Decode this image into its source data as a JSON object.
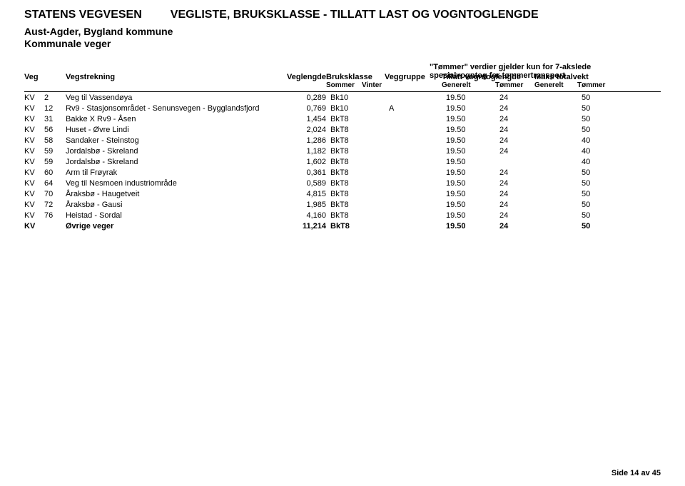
{
  "titles": {
    "org": "STATENS VEGVESEN",
    "main": "VEGLISTE, BRUKSKLASSE - TILLATT LAST OG VOGNTOGLENGDE",
    "region": "Aust-Agder, Bygland kommune",
    "roads_type": "Kommunale veger",
    "note_line1": "\"Tømmer\" verdier gjelder kun for 7-akslede",
    "note_line2": "spesialvogntog for tømmertransport"
  },
  "headers": {
    "veg": "Veg",
    "vegstrekning": "Vegstrekning",
    "veglengde": "Veglengde",
    "bruksklasse": "Bruksklasse",
    "sommer": "Sommer",
    "vinter": "Vinter",
    "veggruppe": "Veggruppe",
    "tillatt": "Tillatt vogntoglengde",
    "maks": "Maks totalvekt",
    "generelt": "Generelt",
    "tommer": "Tømmer"
  },
  "rows": [
    {
      "veg": "KV",
      "num": "2",
      "strek": "Veg til Vassendøya",
      "vegl": "0,289",
      "bk": "Bk10",
      "vgr": "",
      "tvlg": "19.50",
      "tvlt": "24",
      "mtvg": "",
      "mtvt": "50",
      "bold": false
    },
    {
      "veg": "KV",
      "num": "12",
      "strek": "Rv9 - Stasjonsområdet - Senunsvegen - Bygglandsfjord",
      "vegl": "0,769",
      "bk": "Bk10",
      "vgr": "A",
      "tvlg": "19.50",
      "tvlt": "24",
      "mtvg": "",
      "mtvt": "50",
      "bold": false
    },
    {
      "veg": "KV",
      "num": "31",
      "strek": "Bakke X Rv9 - Åsen",
      "vegl": "1,454",
      "bk": "BkT8",
      "vgr": "",
      "tvlg": "19.50",
      "tvlt": "24",
      "mtvg": "",
      "mtvt": "50",
      "bold": false
    },
    {
      "veg": "KV",
      "num": "56",
      "strek": "Huset - Øvre Lindi",
      "vegl": "2,024",
      "bk": "BkT8",
      "vgr": "",
      "tvlg": "19.50",
      "tvlt": "24",
      "mtvg": "",
      "mtvt": "50",
      "bold": false
    },
    {
      "veg": "KV",
      "num": "58",
      "strek": "Sandaker - Steinstog",
      "vegl": "1,286",
      "bk": "BkT8",
      "vgr": "",
      "tvlg": "19.50",
      "tvlt": "24",
      "mtvg": "",
      "mtvt": "40",
      "bold": false
    },
    {
      "veg": "KV",
      "num": "59",
      "strek": "Jordalsbø - Skreland",
      "vegl": "1,182",
      "bk": "BkT8",
      "vgr": "",
      "tvlg": "19.50",
      "tvlt": "24",
      "mtvg": "",
      "mtvt": "40",
      "bold": false
    },
    {
      "veg": "KV",
      "num": "59",
      "strek": "Jordalsbø - Skreland",
      "vegl": "1,602",
      "bk": "BkT8",
      "vgr": "",
      "tvlg": "19.50",
      "tvlt": "",
      "mtvg": "",
      "mtvt": "40",
      "bold": false
    },
    {
      "veg": "KV",
      "num": "60",
      "strek": "Arm til Frøyrak",
      "vegl": "0,361",
      "bk": "BkT8",
      "vgr": "",
      "tvlg": "19.50",
      "tvlt": "24",
      "mtvg": "",
      "mtvt": "50",
      "bold": false
    },
    {
      "veg": "KV",
      "num": "64",
      "strek": "Veg til Nesmoen industriområde",
      "vegl": "0,589",
      "bk": "BkT8",
      "vgr": "",
      "tvlg": "19.50",
      "tvlt": "24",
      "mtvg": "",
      "mtvt": "50",
      "bold": false
    },
    {
      "veg": "KV",
      "num": "70",
      "strek": "Åraksbø - Haugetveit",
      "vegl": "4,815",
      "bk": "BkT8",
      "vgr": "",
      "tvlg": "19.50",
      "tvlt": "24",
      "mtvg": "",
      "mtvt": "50",
      "bold": false
    },
    {
      "veg": "KV",
      "num": "72",
      "strek": "Åraksbø - Gausi",
      "vegl": "1,985",
      "bk": "BkT8",
      "vgr": "",
      "tvlg": "19.50",
      "tvlt": "24",
      "mtvg": "",
      "mtvt": "50",
      "bold": false
    },
    {
      "veg": "KV",
      "num": "76",
      "strek": "Heistad - Sordal",
      "vegl": "4,160",
      "bk": "BkT8",
      "vgr": "",
      "tvlg": "19.50",
      "tvlt": "24",
      "mtvg": "",
      "mtvt": "50",
      "bold": false
    },
    {
      "veg": "KV",
      "num": "",
      "strek": "Øvrige veger",
      "vegl": "11,214",
      "bk": "BkT8",
      "vgr": "",
      "tvlg": "19.50",
      "tvlt": "24",
      "mtvg": "",
      "mtvt": "50",
      "bold": true
    }
  ],
  "footer": "Side 14 av 45"
}
